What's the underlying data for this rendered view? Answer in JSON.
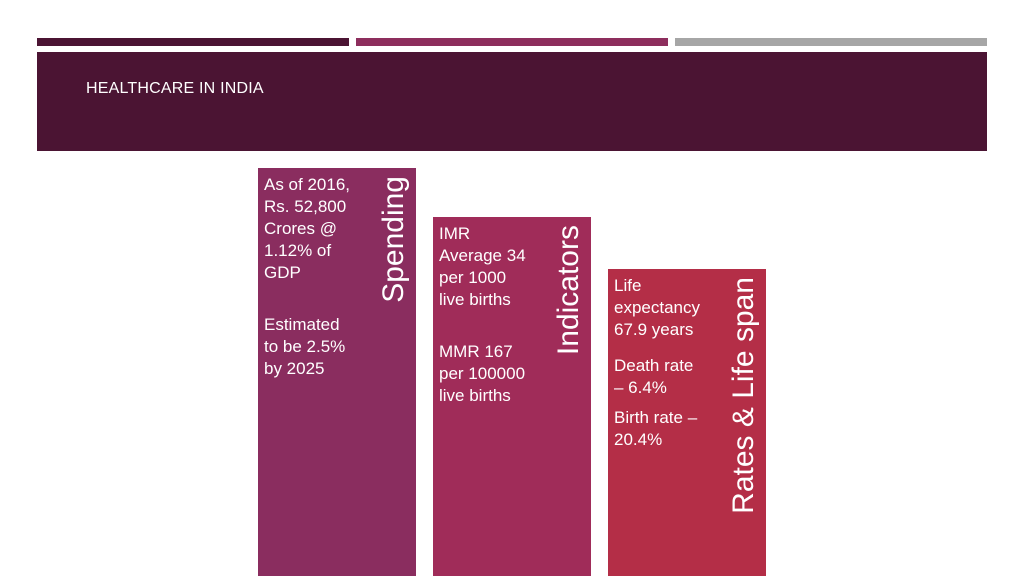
{
  "colors": {
    "header_bg": "#4b1433",
    "bar1": "#4b1433",
    "bar2": "#8d2e5d",
    "bar3": "#a6a6a6",
    "col1": "#8a2d5f",
    "col2": "#a02c59",
    "col3": "#b42e47"
  },
  "header": {
    "title": "HEALTHCARE IN INDIA"
  },
  "columns": [
    {
      "label": "Spending",
      "paragraphs": [
        "As of 2016,\nRs. 52,800\nCrores @\n1.12% of\nGDP",
        "Estimated\nto be 2.5%\nby 2025"
      ]
    },
    {
      "label": "Indicators",
      "paragraphs": [
        "IMR\nAverage 34\nper 1000\nlive births",
        "MMR 167\nper 100000\nlive births"
      ]
    },
    {
      "label": "Rates & Life span",
      "paragraphs": [
        "Life\nexpectancy\n67.9 years",
        "Death rate\n– 6.4%",
        "Birth rate –\n20.4%"
      ]
    }
  ]
}
